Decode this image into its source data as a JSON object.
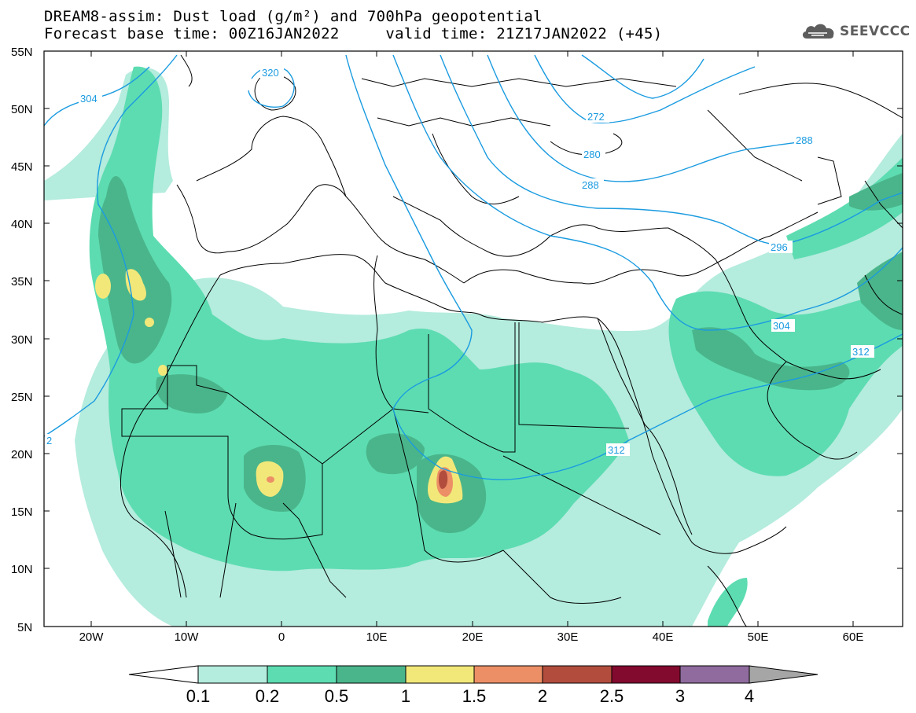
{
  "header": {
    "title_line1": "DREAM8-assim: Dust load (g/m²) and 700hPa geopotential",
    "title_line2": "Forecast base time: 00Z16JAN2022     valid time: 21Z17JAN2022 (+45)"
  },
  "logo": {
    "text": "SEEVCCC",
    "icon": "cloud-icon"
  },
  "map": {
    "lon_range": [
      -25,
      65
    ],
    "lat_range": [
      5,
      55
    ],
    "lat_ticks": [
      "55N",
      "50N",
      "45N",
      "40N",
      "35N",
      "30N",
      "25N",
      "20N",
      "15N",
      "10N",
      "5N"
    ],
    "lon_ticks": [
      "20W",
      "10W",
      "0",
      "10E",
      "20E",
      "30E",
      "40E",
      "50E",
      "60E"
    ]
  },
  "contours": {
    "color": "#1a9be0",
    "labels": [
      "304",
      "320",
      "272",
      "280",
      "288",
      "288",
      "296",
      "304",
      "312",
      "312",
      "2"
    ]
  },
  "colorbar": {
    "colors": [
      "#b4ecdd",
      "#5ddcb1",
      "#4ab58b",
      "#f2e87a",
      "#ec8f66",
      "#b24d3e",
      "#830a2f",
      "#8f6b9e"
    ],
    "left_extend_color": "#ffffff",
    "right_extend_color": "#a6a6a6",
    "labels": [
      "0.1",
      "0.2",
      "0.5",
      "1",
      "1.5",
      "2",
      "2.5",
      "3",
      "4"
    ]
  }
}
